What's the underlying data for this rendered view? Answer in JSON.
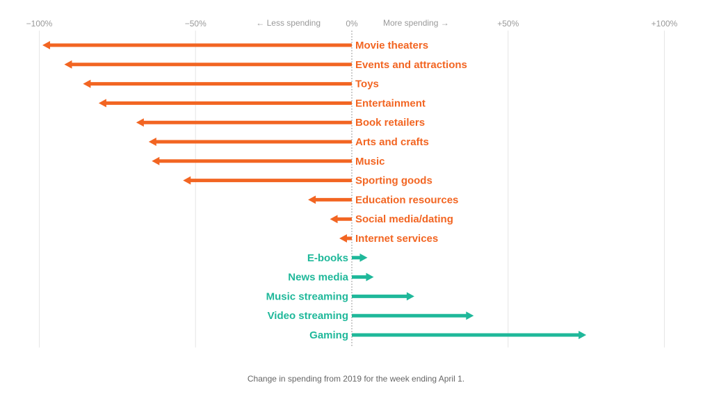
{
  "chart_data": {
    "type": "bar",
    "orientation": "horizontal",
    "categories": [
      "Movie theaters",
      "Events and attractions",
      "Toys",
      "Entertainment",
      "Book retailers",
      "Arts and crafts",
      "Music",
      "Sporting goods",
      "Education resources",
      "Social media/dating",
      "Internet services",
      "E-books",
      "News media",
      "Music streaming",
      "Video streaming",
      "Gaming"
    ],
    "values": [
      -99,
      -92,
      -86,
      -81,
      -69,
      -65,
      -64,
      -54,
      -14,
      -7,
      -4,
      5,
      7,
      20,
      39,
      75
    ],
    "x_ticks": [
      {
        "value": -100,
        "label": "−100%"
      },
      {
        "value": -50,
        "label": "−50%"
      },
      {
        "value": 0,
        "label": "0%"
      },
      {
        "value": 50,
        "label": "+50%"
      },
      {
        "value": 100,
        "label": "+100%"
      }
    ],
    "axis_notes": {
      "left": "← Less spending",
      "right": "More spending →"
    },
    "xlim": [
      -100,
      100
    ],
    "grid": true,
    "colors": {
      "negative": "#f26522",
      "positive": "#1fb89a",
      "grid": "#e6e6e6",
      "zero_line": "#999999"
    }
  },
  "caption": "Change in spending from 2019 for the week ending April 1."
}
